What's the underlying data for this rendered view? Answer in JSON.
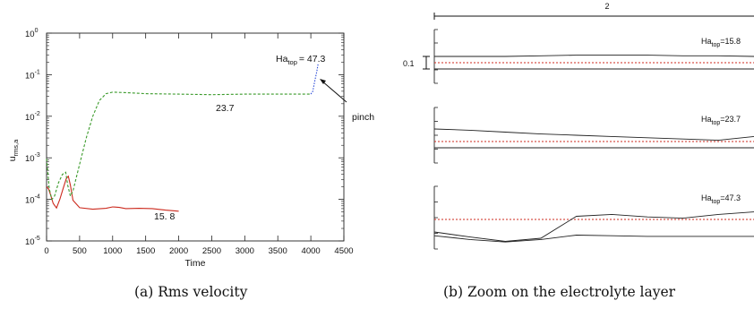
{
  "chart_data": [
    {
      "type": "line",
      "panel": "a",
      "caption": "(a) Rms velocity",
      "xlabel": "Time",
      "ylabel": "u_rms,a",
      "xlim": [
        0,
        4500
      ],
      "ylim": [
        1e-05,
        1
      ],
      "yscale": "log",
      "xticks": [
        "0",
        "500",
        "1000",
        "1500",
        "2000",
        "2500",
        "3000",
        "3500",
        "4000",
        "4500"
      ],
      "yticks": [
        {
          "base": "10",
          "exp": "0"
        },
        {
          "base": "10",
          "exp": "-1"
        },
        {
          "base": "10",
          "exp": "-2"
        },
        {
          "base": "10",
          "exp": "-3"
        },
        {
          "base": "10",
          "exp": "-4"
        },
        {
          "base": "10",
          "exp": "-5"
        }
      ],
      "series": [
        {
          "label": "15. 8",
          "color": "#cc2a1e",
          "style": "solid",
          "x": [
            0,
            30,
            60,
            100,
            150,
            200,
            250,
            300,
            330,
            360,
            400,
            500,
            700,
            900,
            1000,
            1100,
            1200,
            1400,
            1600,
            1800,
            2000
          ],
          "y": [
            0.0002,
            0.00018,
            0.00013,
            8e-05,
            6.2e-05,
            0.0001,
            0.00018,
            0.00032,
            0.00036,
            0.00022,
            9.5e-05,
            6.3e-05,
            5.8e-05,
            6.1e-05,
            6.6e-05,
            6.4e-05,
            6e-05,
            6.1e-05,
            6e-05,
            5.5e-05,
            5.2e-05
          ]
        },
        {
          "label": "23.7",
          "color": "#3a9a2a",
          "style": "dashed",
          "x": [
            0,
            40,
            80,
            120,
            180,
            240,
            290,
            320,
            360,
            400,
            500,
            600,
            700,
            800,
            900,
            1000,
            1200,
            1500,
            2000,
            2500,
            3000,
            3500,
            4000
          ],
          "y": [
            0.00095,
            0.00018,
            0.0001,
            0.00012,
            0.00025,
            0.0004,
            0.00045,
            0.00022,
            0.00012,
            0.00016,
            0.0007,
            0.003,
            0.01,
            0.024,
            0.035,
            0.038,
            0.037,
            0.035,
            0.034,
            0.033,
            0.034,
            0.034,
            0.034
          ]
        },
        {
          "label": "Ha_top = 47.3",
          "color": "#2a4ad8",
          "style": "dotted",
          "x": [
            4000,
            4030,
            4060,
            4090,
            4110
          ],
          "y": [
            0.034,
            0.04,
            0.07,
            0.12,
            0.18
          ]
        }
      ],
      "annotations": {
        "ha_top_label": {
          "base": "Ha",
          "sub": "top",
          "rest": "= 47.3"
        },
        "pinch": "pinch",
        "label_237": "23.7",
        "label_158": "15. 8"
      }
    },
    {
      "type": "line",
      "panel": "b",
      "caption": "(b) Zoom on the electrolyte layer",
      "scale_top": "2",
      "scale_left": "0.1",
      "subpanels": [
        {
          "label": {
            "base": "Ha",
            "sub": "top",
            "rest": "=15.8"
          },
          "interface_top": [
            0.1,
            0.1,
            0.1,
            0.11,
            0.12,
            0.12,
            0.12,
            0.11,
            0.11,
            0.1
          ],
          "interface_bottom": [
            -0.1,
            -0.1,
            -0.1,
            -0.1,
            -0.1,
            -0.1,
            -0.1,
            -0.1,
            -0.1,
            -0.1
          ]
        },
        {
          "label": {
            "base": "Ha",
            "sub": "top",
            "rest": "=23.7"
          },
          "interface_top": [
            0.2,
            0.18,
            0.15,
            0.12,
            0.1,
            0.08,
            0.06,
            0.04,
            0.02,
            0.08
          ],
          "interface_bottom": [
            -0.1,
            -0.1,
            -0.1,
            -0.1,
            -0.1,
            -0.1,
            -0.1,
            -0.1,
            -0.1,
            -0.1
          ]
        },
        {
          "label": {
            "base": "Ha",
            "sub": "top",
            "rest": "=47.3"
          },
          "interface_top": [
            -0.2,
            -0.28,
            -0.35,
            -0.3,
            0.05,
            0.08,
            0.04,
            0.02,
            0.08,
            0.12
          ],
          "interface_bottom": [
            -0.26,
            -0.32,
            -0.36,
            -0.32,
            -0.25,
            -0.26,
            -0.27,
            -0.27,
            -0.27,
            -0.27
          ]
        }
      ]
    }
  ]
}
